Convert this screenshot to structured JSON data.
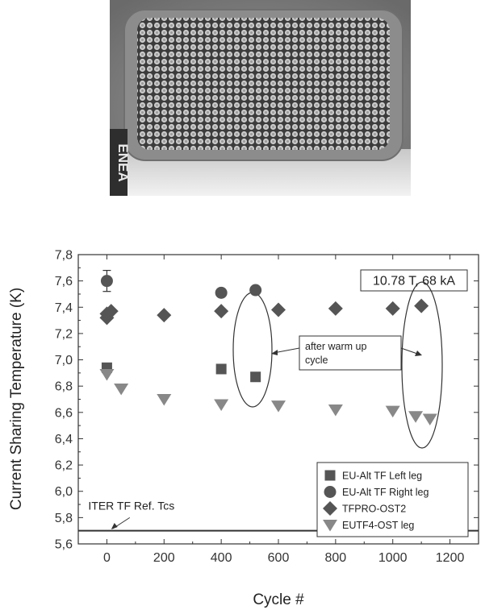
{
  "photo": {
    "logo_text": "ENEA"
  },
  "chart_data": {
    "type": "scatter",
    "xlabel": "Cycle #",
    "ylabel": "Current Sharing Temperature (K)",
    "xlim": [
      -100,
      1300
    ],
    "ylim": [
      5.6,
      7.8
    ],
    "x_ticks": [
      0,
      200,
      400,
      600,
      800,
      1000,
      1200
    ],
    "y_ticks": [
      "5,6",
      "5,8",
      "6,0",
      "6,2",
      "6,4",
      "6,6",
      "6,8",
      "7,0",
      "7,2",
      "7,4",
      "7,6",
      "7,8"
    ],
    "y_tick_values": [
      5.6,
      5.8,
      6.0,
      6.2,
      6.4,
      6.6,
      6.8,
      7.0,
      7.2,
      7.4,
      7.6,
      7.8
    ],
    "x_tick_labels": [
      "0",
      "200",
      "400",
      "600",
      "800",
      "1000",
      "1200"
    ],
    "condition_label": "10.78 T, 68 kA",
    "reference_line": {
      "label": "ITER TF Ref. Tcs",
      "y": 5.7
    },
    "annotation": {
      "line1": "after warm up",
      "line2": "cycle"
    },
    "legend_placement": "bottom-right",
    "series": [
      {
        "name": "EU-Alt TF Left leg",
        "marker": "square",
        "color": "#555555",
        "points": [
          [
            0,
            6.94
          ],
          [
            400,
            6.93
          ],
          [
            520,
            6.87
          ]
        ]
      },
      {
        "name": "EU-Alt TF Right leg",
        "marker": "circle",
        "color": "#555555",
        "points": [
          [
            0,
            7.6
          ],
          [
            400,
            7.51
          ],
          [
            520,
            7.53
          ]
        ],
        "error_bars": [
          [
            0,
            7.52,
            7.68
          ]
        ]
      },
      {
        "name": "TFPRO-OST2",
        "marker": "diamond",
        "color": "#555555",
        "points": [
          [
            0,
            7.32
          ],
          [
            0,
            7.35
          ],
          [
            15,
            7.37
          ],
          [
            200,
            7.34
          ],
          [
            400,
            7.37
          ],
          [
            600,
            7.38
          ],
          [
            800,
            7.39
          ],
          [
            1000,
            7.39
          ],
          [
            1100,
            7.41
          ]
        ]
      },
      {
        "name": "EUTF4-OST leg",
        "marker": "triangle-down",
        "color": "#888888",
        "points": [
          [
            0,
            6.89
          ],
          [
            50,
            6.78
          ],
          [
            200,
            6.7
          ],
          [
            400,
            6.66
          ],
          [
            600,
            6.65
          ],
          [
            800,
            6.62
          ],
          [
            1000,
            6.61
          ],
          [
            1080,
            6.57
          ],
          [
            1130,
            6.55
          ]
        ]
      }
    ]
  }
}
